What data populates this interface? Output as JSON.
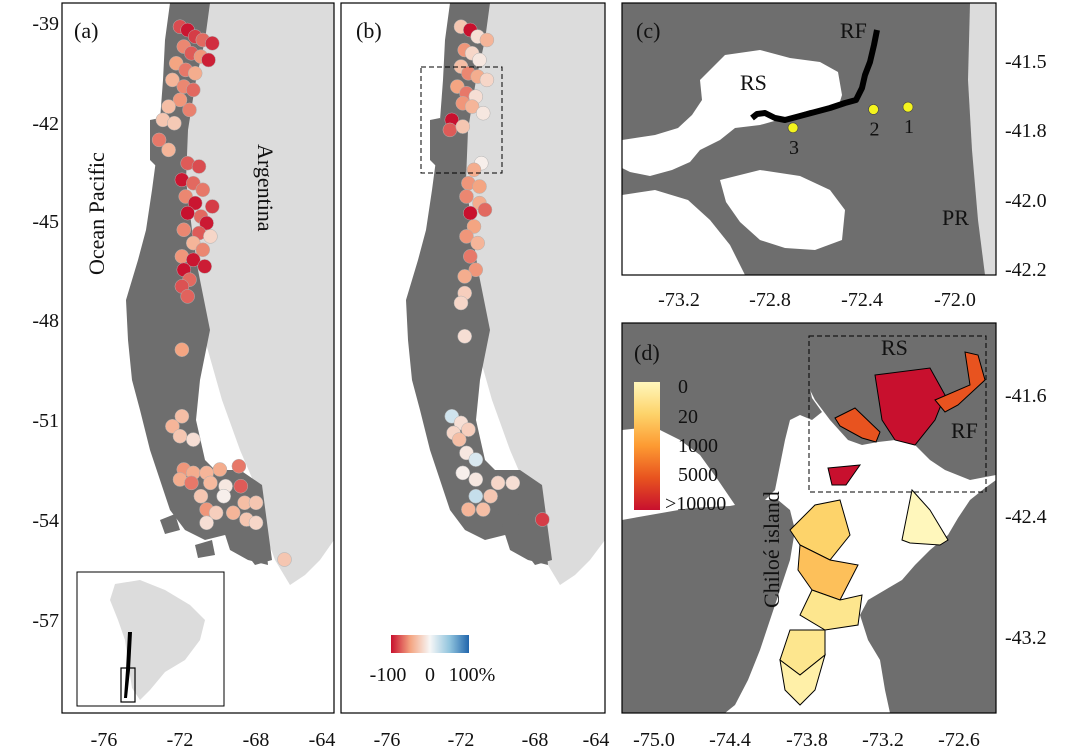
{
  "colors": {
    "land": "#6e6e6e",
    "land_outline": "#555555",
    "neighbor_land": "#dcdcdc",
    "sea": "#ffffff",
    "river": "#000000",
    "station": "#f4f41e",
    "grid_line": "#000000"
  },
  "panels": {
    "a": {
      "label": "(a)",
      "ocean_label": "Ocean Pacific",
      "country_label": "Argentina",
      "x_ticks": [
        "-76",
        "-72",
        "-68",
        "-64"
      ],
      "y_ticks": [
        "-39",
        "-42",
        "-45",
        "-48",
        "-51",
        "-54",
        "-57"
      ],
      "inset_icon": "south-america-locator-map",
      "sites": [
        {
          "lon": -72.0,
          "lat": -39.2,
          "v": -80
        },
        {
          "lon": -71.6,
          "lat": -39.3,
          "v": -98
        },
        {
          "lon": -71.2,
          "lat": -39.5,
          "v": -85
        },
        {
          "lon": -70.8,
          "lat": -39.6,
          "v": -70
        },
        {
          "lon": -70.3,
          "lat": -39.7,
          "v": -90
        },
        {
          "lon": -71.8,
          "lat": -39.8,
          "v": -60
        },
        {
          "lon": -71.4,
          "lat": -40.0,
          "v": -75
        },
        {
          "lon": -70.9,
          "lat": -40.1,
          "v": -55
        },
        {
          "lon": -70.5,
          "lat": -40.2,
          "v": -95
        },
        {
          "lon": -72.2,
          "lat": -40.3,
          "v": -50
        },
        {
          "lon": -71.7,
          "lat": -40.5,
          "v": -65
        },
        {
          "lon": -71.2,
          "lat": -40.6,
          "v": -45
        },
        {
          "lon": -72.4,
          "lat": -40.8,
          "v": -40
        },
        {
          "lon": -71.8,
          "lat": -41.0,
          "v": -60
        },
        {
          "lon": -71.3,
          "lat": -41.1,
          "v": -70
        },
        {
          "lon": -72.0,
          "lat": -41.4,
          "v": -55
        },
        {
          "lon": -72.6,
          "lat": -41.6,
          "v": -35
        },
        {
          "lon": -71.5,
          "lat": -41.7,
          "v": -62
        },
        {
          "lon": -72.9,
          "lat": -42.0,
          "v": -30
        },
        {
          "lon": -72.3,
          "lat": -42.1,
          "v": -28
        },
        {
          "lon": -73.1,
          "lat": -42.6,
          "v": -65
        },
        {
          "lon": -72.6,
          "lat": -42.9,
          "v": -40
        },
        {
          "lon": -71.6,
          "lat": -43.3,
          "v": -75
        },
        {
          "lon": -71.0,
          "lat": -43.4,
          "v": -80
        },
        {
          "lon": -71.9,
          "lat": -43.8,
          "v": -98
        },
        {
          "lon": -71.3,
          "lat": -43.9,
          "v": -70
        },
        {
          "lon": -70.8,
          "lat": -44.1,
          "v": -65
        },
        {
          "lon": -71.7,
          "lat": -44.3,
          "v": -60
        },
        {
          "lon": -71.2,
          "lat": -44.5,
          "v": -98
        },
        {
          "lon": -70.3,
          "lat": -44.6,
          "v": -85
        },
        {
          "lon": -71.6,
          "lat": -44.8,
          "v": -100
        },
        {
          "lon": -70.9,
          "lat": -44.9,
          "v": -70
        },
        {
          "lon": -70.6,
          "lat": -45.1,
          "v": -97
        },
        {
          "lon": -71.8,
          "lat": -45.3,
          "v": -60
        },
        {
          "lon": -71.0,
          "lat": -45.4,
          "v": -75
        },
        {
          "lon": -70.4,
          "lat": -45.5,
          "v": -20
        },
        {
          "lon": -71.3,
          "lat": -45.7,
          "v": -40
        },
        {
          "lon": -70.8,
          "lat": -45.9,
          "v": -60
        },
        {
          "lon": -71.9,
          "lat": -46.1,
          "v": -55
        },
        {
          "lon": -71.3,
          "lat": -46.2,
          "v": -98
        },
        {
          "lon": -70.7,
          "lat": -46.4,
          "v": -96
        },
        {
          "lon": -71.8,
          "lat": -46.5,
          "v": -99
        },
        {
          "lon": -71.5,
          "lat": -46.8,
          "v": -70
        },
        {
          "lon": -71.9,
          "lat": -47.0,
          "v": -78
        },
        {
          "lon": -71.6,
          "lat": -47.3,
          "v": -72
        },
        {
          "lon": -71.9,
          "lat": -48.9,
          "v": -50
        },
        {
          "lon": -71.9,
          "lat": -50.9,
          "v": -35
        },
        {
          "lon": -72.4,
          "lat": -51.2,
          "v": -40
        },
        {
          "lon": -72.0,
          "lat": -51.5,
          "v": -30
        },
        {
          "lon": -71.3,
          "lat": -51.6,
          "v": -15
        },
        {
          "lon": -71.8,
          "lat": -52.5,
          "v": -55
        },
        {
          "lon": -71.3,
          "lat": -52.6,
          "v": -45
        },
        {
          "lon": -70.6,
          "lat": -52.6,
          "v": -40
        },
        {
          "lon": -69.9,
          "lat": -52.5,
          "v": -45
        },
        {
          "lon": -68.9,
          "lat": -52.4,
          "v": -65
        },
        {
          "lon": -72.0,
          "lat": -52.8,
          "v": -45
        },
        {
          "lon": -71.4,
          "lat": -52.9,
          "v": -65
        },
        {
          "lon": -70.4,
          "lat": -52.9,
          "v": -38
        },
        {
          "lon": -69.6,
          "lat": -53.0,
          "v": -10
        },
        {
          "lon": -68.8,
          "lat": -53.0,
          "v": -75
        },
        {
          "lon": -70.9,
          "lat": -53.3,
          "v": -30
        },
        {
          "lon": -69.7,
          "lat": -53.3,
          "v": -5
        },
        {
          "lon": -68.6,
          "lat": -53.5,
          "v": -35
        },
        {
          "lon": -68.0,
          "lat": -53.5,
          "v": -30
        },
        {
          "lon": -70.6,
          "lat": -53.7,
          "v": -55
        },
        {
          "lon": -70.1,
          "lat": -53.8,
          "v": -25
        },
        {
          "lon": -69.2,
          "lat": -53.8,
          "v": -40
        },
        {
          "lon": -68.5,
          "lat": -54.0,
          "v": -30
        },
        {
          "lon": -70.6,
          "lat": -54.1,
          "v": -15
        },
        {
          "lon": -68.0,
          "lat": -54.1,
          "v": -20
        },
        {
          "lon": -66.5,
          "lat": -55.2,
          "v": -30
        }
      ]
    },
    "b": {
      "label": "(b)",
      "x_ticks": [
        "-76",
        "-72",
        "-68",
        "-64"
      ],
      "legend_ticks": [
        "-100",
        "0",
        "100%"
      ],
      "legend_colors": [
        "#c8102e",
        "#f4a582",
        "#f7f7f7",
        "#92c5de",
        "#2166ac"
      ],
      "sites": [
        {
          "lon": -72.0,
          "lat": -39.2,
          "v": -30
        },
        {
          "lon": -71.5,
          "lat": -39.3,
          "v": -100
        },
        {
          "lon": -71.1,
          "lat": -39.5,
          "v": -15
        },
        {
          "lon": -70.6,
          "lat": -39.6,
          "v": -40
        },
        {
          "lon": -71.8,
          "lat": -39.9,
          "v": -55
        },
        {
          "lon": -71.4,
          "lat": -40.0,
          "v": -20
        },
        {
          "lon": -71.0,
          "lat": -40.2,
          "v": -10
        },
        {
          "lon": -72.0,
          "lat": -40.4,
          "v": -35
        },
        {
          "lon": -71.6,
          "lat": -40.6,
          "v": -60
        },
        {
          "lon": -71.1,
          "lat": -40.7,
          "v": -45
        },
        {
          "lon": -70.6,
          "lat": -40.8,
          "v": -20
        },
        {
          "lon": -72.2,
          "lat": -41.0,
          "v": -50
        },
        {
          "lon": -71.7,
          "lat": -41.2,
          "v": -65
        },
        {
          "lon": -71.2,
          "lat": -41.3,
          "v": -15
        },
        {
          "lon": -71.9,
          "lat": -41.5,
          "v": -55
        },
        {
          "lon": -71.4,
          "lat": -41.6,
          "v": -40
        },
        {
          "lon": -70.8,
          "lat": -41.8,
          "v": -10
        },
        {
          "lon": -72.5,
          "lat": -42.0,
          "v": -100
        },
        {
          "lon": -72.6,
          "lat": -42.3,
          "v": -75
        },
        {
          "lon": -71.9,
          "lat": -42.2,
          "v": -30
        },
        {
          "lon": -70.9,
          "lat": -43.3,
          "v": -5
        },
        {
          "lon": -71.3,
          "lat": -43.5,
          "v": -45
        },
        {
          "lon": -71.6,
          "lat": -43.9,
          "v": -55
        },
        {
          "lon": -71.0,
          "lat": -44.0,
          "v": -50
        },
        {
          "lon": -71.7,
          "lat": -44.3,
          "v": -60
        },
        {
          "lon": -71.0,
          "lat": -44.5,
          "v": -45
        },
        {
          "lon": -71.5,
          "lat": -44.8,
          "v": -100
        },
        {
          "lon": -70.7,
          "lat": -44.7,
          "v": -70
        },
        {
          "lon": -71.3,
          "lat": -45.2,
          "v": -50
        },
        {
          "lon": -71.7,
          "lat": -45.5,
          "v": -55
        },
        {
          "lon": -71.1,
          "lat": -45.7,
          "v": -40
        },
        {
          "lon": -71.5,
          "lat": -46.1,
          "v": -65
        },
        {
          "lon": -71.2,
          "lat": -46.5,
          "v": -55
        },
        {
          "lon": -71.8,
          "lat": -46.7,
          "v": -45
        },
        {
          "lon": -71.8,
          "lat": -47.2,
          "v": -25
        },
        {
          "lon": -72.0,
          "lat": -47.5,
          "v": -20
        },
        {
          "lon": -71.8,
          "lat": -48.5,
          "v": -15
        },
        {
          "lon": -72.5,
          "lat": -50.9,
          "v": 20
        },
        {
          "lon": -72.0,
          "lat": -51.1,
          "v": -15
        },
        {
          "lon": -72.4,
          "lat": -51.4,
          "v": -20
        },
        {
          "lon": -71.6,
          "lat": -51.3,
          "v": -25
        },
        {
          "lon": -72.1,
          "lat": -51.6,
          "v": -35
        },
        {
          "lon": -71.7,
          "lat": -52.0,
          "v": -10
        },
        {
          "lon": -71.2,
          "lat": -52.2,
          "v": 15
        },
        {
          "lon": -71.9,
          "lat": -52.6,
          "v": -5
        },
        {
          "lon": -71.2,
          "lat": -52.8,
          "v": -10
        },
        {
          "lon": -70.0,
          "lat": -52.9,
          "v": -20
        },
        {
          "lon": -69.2,
          "lat": -52.9,
          "v": -15
        },
        {
          "lon": -71.2,
          "lat": -53.3,
          "v": 25
        },
        {
          "lon": -70.4,
          "lat": -53.3,
          "v": -30
        },
        {
          "lon": -71.6,
          "lat": -53.7,
          "v": -40
        },
        {
          "lon": -70.8,
          "lat": -53.7,
          "v": -35
        },
        {
          "lon": -67.6,
          "lat": -54.0,
          "v": -85
        }
      ]
    },
    "c": {
      "label": "(c)",
      "x_ticks": [
        "-73.2",
        "-72.8",
        "-72.4",
        "-72.0"
      ],
      "y_ticks": [
        "-41.5",
        "-41.8",
        "-42.0",
        "-42.2"
      ],
      "area_labels": [
        "RF",
        "RS",
        "PR"
      ],
      "stations": [
        {
          "label": "1",
          "lon": -72.2,
          "lat": -41.67
        },
        {
          "label": "2",
          "lon": -72.35,
          "lat": -41.68
        },
        {
          "label": "3",
          "lon": -72.7,
          "lat": -41.76
        }
      ]
    },
    "d": {
      "label": "(d)",
      "x_ticks": [
        "-75.0",
        "-74.4",
        "-73.8",
        "-73.2",
        "-72.6"
      ],
      "y_ticks": [
        "-41.6",
        "-42.4",
        "-43.2"
      ],
      "island_label": "Chiloé island",
      "area_labels": [
        "RS",
        "RF"
      ],
      "legend_labels": [
        "0",
        "20",
        "1000",
        "5000",
        ">10000"
      ],
      "legend_colors": [
        "#fff7bc",
        "#fdd36a",
        "#fd9a32",
        "#e8531f",
        "#c8102e"
      ]
    }
  }
}
